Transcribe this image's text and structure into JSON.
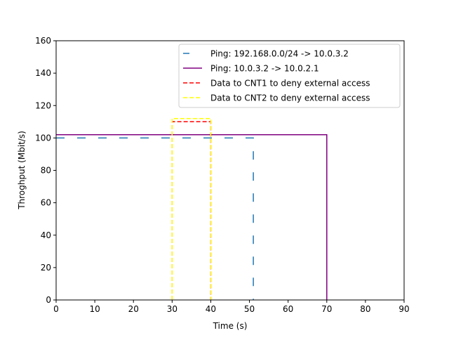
{
  "chart_data": {
    "type": "line",
    "title": "",
    "xlabel": "Time (s)",
    "ylabel": "Throghput (Mbit/s)",
    "xlim": [
      0,
      90
    ],
    "ylim": [
      0,
      160
    ],
    "xticks": [
      "0",
      "10",
      "20",
      "30",
      "40",
      "50",
      "60",
      "70",
      "80",
      "90"
    ],
    "yticks": [
      "0",
      "20",
      "40",
      "60",
      "80",
      "100",
      "120",
      "140",
      "160"
    ],
    "grid": false,
    "legend_position": "top-right",
    "series": [
      {
        "name": "Ping: 192.168.0.0/24 -> 10.0.3.2",
        "color": "#1f77b4",
        "style": "dashed-long",
        "x": [
          0,
          51,
          51
        ],
        "y": [
          100,
          100,
          0
        ]
      },
      {
        "name": "Ping: 10.0.3.2 -> 10.0.2.1",
        "color": "#800080",
        "style": "solid",
        "x": [
          0,
          70,
          70
        ],
        "y": [
          102,
          102,
          0
        ]
      },
      {
        "name": "Data to CNT1 to deny external access",
        "color": "#ff0000",
        "style": "dashed",
        "x": [
          30,
          30,
          40,
          40
        ],
        "y": [
          0,
          110,
          110,
          0
        ]
      },
      {
        "name": "Data to CNT2 to deny external access",
        "color": "#ffff00",
        "style": "dashed",
        "x": [
          30,
          30,
          40,
          40
        ],
        "y": [
          0,
          112,
          112,
          0
        ]
      }
    ]
  }
}
